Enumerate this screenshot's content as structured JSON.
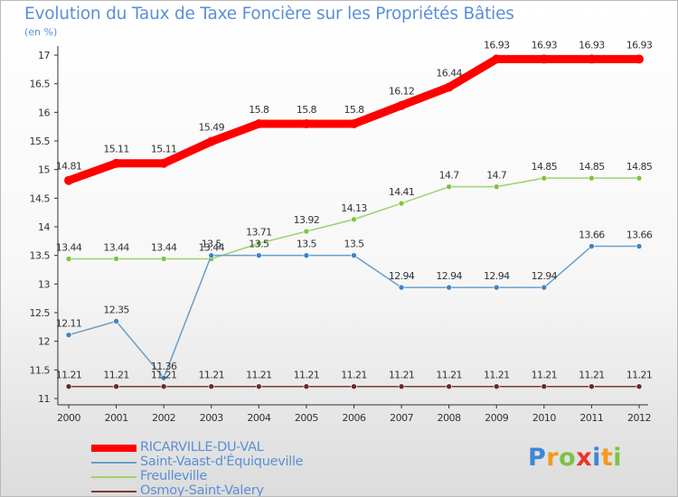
{
  "chart_data": {
    "type": "line",
    "title": "Evolution du Taux de Taxe Foncière sur les Propriétés Bâties",
    "unit_label": "(en %)",
    "xlabel": "",
    "ylabel": "(en %)",
    "x": [
      "2000",
      "2001",
      "2002",
      "2003",
      "2004",
      "2005",
      "2006",
      "2007",
      "2008",
      "2009",
      "2010",
      "2011",
      "2012"
    ],
    "ylim": [
      11,
      17
    ],
    "yticks": [
      "11",
      "11.5",
      "12",
      "12.5",
      "13",
      "13.5",
      "14",
      "14.5",
      "15",
      "15.5",
      "16",
      "16.5",
      "17"
    ],
    "grid": false,
    "legend_position": "bottom-left",
    "series": [
      {
        "name": "RICARVILLE-DU-VAL",
        "color": "#ff0000",
        "values": [
          14.81,
          15.11,
          15.11,
          15.49,
          15.8,
          15.8,
          15.8,
          16.12,
          16.44,
          16.93,
          16.93,
          16.93,
          16.93
        ],
        "labels": [
          "14.81",
          "15.11",
          "15.11",
          "15.49",
          "15.8",
          "15.8",
          "15.8",
          "16.12",
          "16.44",
          "16.93",
          "16.93",
          "16.93",
          "16.93"
        ]
      },
      {
        "name": "Saint-Vaast-d'Équiqueville",
        "color": "#6a9ec8",
        "marker": "#3f83c4",
        "values": [
          12.11,
          12.35,
          11.36,
          13.5,
          13.5,
          13.5,
          13.5,
          12.94,
          12.94,
          12.94,
          12.94,
          13.66,
          13.66
        ],
        "labels": [
          "12.11",
          "12.35",
          "11.36",
          "13.5",
          "13.5",
          "13.5",
          "13.5",
          "12.94",
          "12.94",
          "12.94",
          "12.94",
          "13.66",
          "13.66"
        ]
      },
      {
        "name": "Freulleville",
        "color": "#9bd36a",
        "marker": "#7ec43e",
        "values": [
          13.44,
          13.44,
          13.44,
          13.44,
          13.71,
          13.92,
          14.13,
          14.41,
          14.7,
          14.7,
          14.85,
          14.85,
          14.85
        ],
        "labels": [
          "13.44",
          "13.44",
          "13.44",
          "13.44",
          "13.71",
          "13.92",
          "14.13",
          "14.41",
          "14.7",
          "14.7",
          "14.85",
          "14.85",
          "14.85"
        ]
      },
      {
        "name": "Osmoy-Saint-Valery",
        "color": "#7a3a3a",
        "marker": "#6b2828",
        "values": [
          11.21,
          11.21,
          11.21,
          11.21,
          11.21,
          11.21,
          11.21,
          11.21,
          11.21,
          11.21,
          11.21,
          11.21,
          11.21
        ],
        "labels": [
          "11.21",
          "11.21",
          "11.21",
          "11.21",
          "11.21",
          "11.21",
          "11.21",
          "11.21",
          "11.21",
          "11.21",
          "11.21",
          "11.21",
          "11.21"
        ]
      }
    ]
  },
  "logo": {
    "letters": [
      "P",
      "r",
      "o",
      "x",
      "i",
      "t",
      "i"
    ],
    "colors": [
      "#3b87d4",
      "#f29a1c",
      "#7cc242",
      "#e8342c",
      "#3b87d4",
      "#f29a1c",
      "#7cc242"
    ]
  }
}
